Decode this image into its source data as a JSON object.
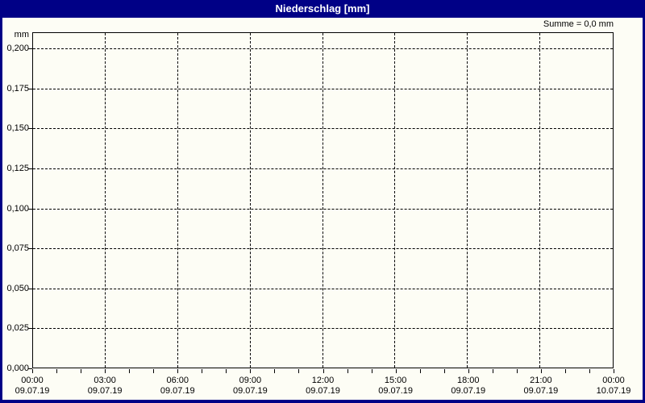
{
  "window": {
    "title": "Niederschlag [mm]"
  },
  "header": {
    "sum_label": "Summe = 0,0 mm"
  },
  "colors": {
    "titlebar_bg": "#000086",
    "frame_border": "#000086",
    "background": "#fdfdf5",
    "grid": "#000000",
    "text": "#000000",
    "title_text": "#ffffff"
  },
  "chart_data": {
    "type": "line",
    "title": "Niederschlag [mm]",
    "subtitle": "",
    "xlabel": "",
    "ylabel": "mm",
    "annotation": "Summe = 0,0 mm",
    "ylim": [
      0.0,
      0.2
    ],
    "ytick_step": 0.025,
    "yticks": [
      "0,200",
      "0,175",
      "0,150",
      "0,125",
      "0,100",
      "0,075",
      "0,050",
      "0,025",
      "0,000"
    ],
    "ytick_values": [
      0.2,
      0.175,
      0.15,
      0.125,
      0.1,
      0.075,
      0.05,
      0.025,
      0.0
    ],
    "x_range_hours": 24,
    "x_major_tick_interval_hours": 3,
    "x_minor_tick_interval_hours": 1,
    "xticks": [
      {
        "time": "00:00",
        "date": "09.07.19"
      },
      {
        "time": "03:00",
        "date": "09.07.19"
      },
      {
        "time": "06:00",
        "date": "09.07.19"
      },
      {
        "time": "09:00",
        "date": "09.07.19"
      },
      {
        "time": "12:00",
        "date": "09.07.19"
      },
      {
        "time": "15:00",
        "date": "09.07.19"
      },
      {
        "time": "18:00",
        "date": "09.07.19"
      },
      {
        "time": "21:00",
        "date": "09.07.19"
      },
      {
        "time": "00:00",
        "date": "10.07.19"
      }
    ],
    "grid": "dashed major gridlines, both axes",
    "legend": "none",
    "series": [
      {
        "name": "Niederschlag",
        "values": [],
        "sum_mm": 0.0
      }
    ]
  }
}
